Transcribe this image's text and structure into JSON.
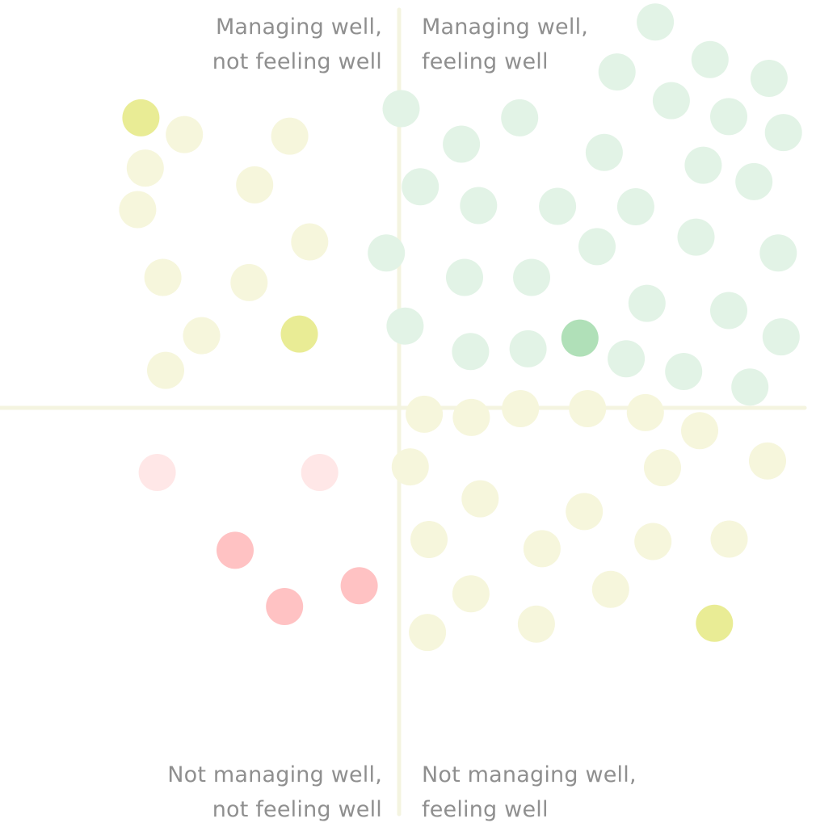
{
  "quadrants": {
    "top_left": {
      "line1": "Managing well,",
      "line2": "not feeling well"
    },
    "top_right": {
      "line1": "Managing well,",
      "line2": "feeling well"
    },
    "bottom_left": {
      "line1": "Not managing well,",
      "line2": "not feeling well"
    },
    "bottom_right": {
      "line1": "Not managing well,",
      "line2": "feeling well"
    }
  },
  "colors": {
    "axis": "#f4f4e0",
    "green_soft": "#e2f3e6",
    "green_strong": "#b0e0b8",
    "yellow_soft": "#f6f6dc",
    "yellow_strong": "#e9ec95",
    "red_soft": "#ffe7e7",
    "red_strong": "#ffc2c3"
  },
  "chart_data": {
    "type": "scatter",
    "title": "",
    "xlabel": "",
    "ylabel": "",
    "xlim": [
      -1,
      1
    ],
    "ylim": [
      -1,
      1
    ],
    "axes_lines": "cross at origin",
    "grid": false,
    "legend": "none",
    "series": [
      {
        "color_key": "yellow_soft",
        "points": [
          [
            -0.538,
            0.685
          ],
          [
            -0.274,
            0.681
          ],
          [
            -0.636,
            0.601
          ],
          [
            -0.362,
            0.559
          ],
          [
            -0.655,
            0.497
          ],
          [
            -0.224,
            0.416
          ],
          [
            -0.592,
            0.327
          ],
          [
            -0.376,
            0.314
          ],
          [
            -0.495,
            0.181
          ],
          [
            -0.585,
            0.094
          ],
          [
            0.063,
            -0.016
          ],
          [
            0.181,
            -0.024
          ],
          [
            0.304,
            -0.002
          ],
          [
            0.472,
            -0.002
          ],
          [
            0.617,
            -0.012
          ],
          [
            0.753,
            -0.057
          ],
          [
            0.028,
            -0.148
          ],
          [
            0.66,
            -0.15
          ],
          [
            0.923,
            -0.133
          ],
          [
            0.203,
            -0.228
          ],
          [
            0.464,
            -0.26
          ],
          [
            0.075,
            -0.33
          ],
          [
            0.358,
            -0.353
          ],
          [
            0.636,
            -0.335
          ],
          [
            0.827,
            -0.329
          ],
          [
            0.18,
            -0.466
          ],
          [
            0.53,
            -0.455
          ],
          [
            0.071,
            -0.563
          ],
          [
            0.344,
            -0.542
          ]
        ]
      },
      {
        "color_key": "yellow_strong",
        "points": [
          [
            -0.647,
            0.727
          ],
          [
            -0.25,
            0.185
          ],
          [
            0.79,
            -0.54
          ]
        ]
      },
      {
        "color_key": "green_soft",
        "points": [
          [
            0.642,
            0.967
          ],
          [
            0.546,
            0.842
          ],
          [
            0.779,
            0.873
          ],
          [
            0.927,
            0.826
          ],
          [
            0.005,
            0.75
          ],
          [
            0.682,
            0.77
          ],
          [
            0.302,
            0.727
          ],
          [
            0.826,
            0.73
          ],
          [
            0.963,
            0.69
          ],
          [
            0.156,
            0.661
          ],
          [
            0.514,
            0.64
          ],
          [
            0.762,
            0.608
          ],
          [
            0.053,
            0.554
          ],
          [
            0.199,
            0.507
          ],
          [
            0.397,
            0.505
          ],
          [
            0.593,
            0.504
          ],
          [
            0.889,
            0.567
          ],
          [
            0.744,
            0.428
          ],
          [
            0.496,
            0.404
          ],
          [
            0.95,
            0.388
          ],
          [
            -0.032,
            0.388
          ],
          [
            0.164,
            0.327
          ],
          [
            0.332,
            0.327
          ],
          [
            0.621,
            0.262
          ],
          [
            0.826,
            0.244
          ],
          [
            0.015,
            0.205
          ],
          [
            0.179,
            0.141
          ],
          [
            0.323,
            0.148
          ],
          [
            0.569,
            0.123
          ],
          [
            0.713,
            0.091
          ],
          [
            0.957,
            0.178
          ],
          [
            0.879,
            0.052
          ]
        ]
      },
      {
        "color_key": "green_strong",
        "points": [
          [
            0.453,
            0.175
          ]
        ]
      },
      {
        "color_key": "red_soft",
        "points": [
          [
            -0.606,
            -0.162
          ],
          [
            -0.199,
            -0.162
          ]
        ]
      },
      {
        "color_key": "red_strong",
        "points": [
          [
            -0.411,
            -0.357
          ],
          [
            -0.1,
            -0.446
          ],
          [
            -0.287,
            -0.498
          ]
        ]
      }
    ]
  }
}
